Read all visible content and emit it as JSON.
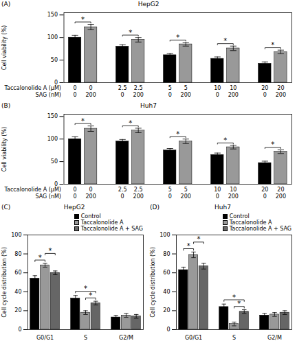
{
  "chart_data": [
    {
      "type": "bar",
      "title": "HepG2",
      "panel_label": "(A)",
      "ylabel": "Cell viability (%)",
      "ylim": [
        0,
        155
      ],
      "yticks": [
        0,
        50,
        100,
        150
      ],
      "tick_labels": "y",
      "series": [
        {
          "color": "#000000",
          "values": [
            100,
            80,
            61,
            53,
            42
          ],
          "errors": [
            5,
            4,
            4,
            4,
            4
          ]
        },
        {
          "color": "#999999",
          "values": [
            123,
            95,
            85,
            76,
            68
          ],
          "errors": [
            6,
            5,
            4,
            5,
            4
          ]
        }
      ],
      "x_label_rows": [
        {
          "label": "Taccalonolide A (μM)",
          "values": [
            "0",
            "0",
            "2.5",
            "2.5",
            "5",
            "5",
            "10",
            "10",
            "20",
            "20"
          ]
        },
        {
          "label": "SAG (nM)",
          "values": [
            "0",
            "200",
            "0",
            "200",
            "0",
            "200",
            "0",
            "200",
            "0",
            "200"
          ]
        }
      ],
      "significance": [
        "*",
        "*",
        "*",
        "*",
        "*"
      ]
    },
    {
      "type": "bar",
      "title": "Huh7",
      "panel_label": "(B)",
      "ylabel": "Cell viability (%)",
      "ylim": [
        0,
        155
      ],
      "yticks": [
        0,
        50,
        100,
        150
      ],
      "tick_labels": "y",
      "series": [
        {
          "color": "#000000",
          "values": [
            100,
            95,
            75,
            65,
            47
          ],
          "errors": [
            5,
            4,
            4,
            4,
            4
          ]
        },
        {
          "color": "#999999",
          "values": [
            123,
            119,
            95,
            82,
            72
          ],
          "errors": [
            6,
            5,
            5,
            4,
            4
          ]
        }
      ],
      "x_label_rows": [
        {
          "label": "Taccalonolide A (μM)",
          "values": [
            "0",
            "0",
            "2.5",
            "2.5",
            "5",
            "5",
            "10",
            "10",
            "20",
            "20"
          ]
        },
        {
          "label": "SAG (nM)",
          "values": [
            "0",
            "200",
            "0",
            "200",
            "0",
            "200",
            "0",
            "200",
            "0",
            "200"
          ]
        }
      ],
      "significance": [
        "*",
        "*",
        "*",
        "*",
        "*"
      ]
    },
    {
      "type": "bar",
      "title": "HepG2",
      "panel_label": "(C)",
      "ylabel": "Cell cycle distribution (%)",
      "categories": [
        "G0/G1",
        "S",
        "G2/M"
      ],
      "ylim": [
        0,
        100
      ],
      "yticks": [
        0,
        20,
        40,
        60,
        80,
        100
      ],
      "legend": "upper right",
      "series": [
        {
          "name": "Control",
          "color": "#000000",
          "values": [
            54,
            33,
            13
          ],
          "errors": [
            3,
            3,
            2
          ]
        },
        {
          "name": "Taccalonolide A",
          "color": "#999999",
          "values": [
            68,
            18,
            15
          ],
          "errors": [
            2,
            2,
            2
          ]
        },
        {
          "name": "Taccalonolide A + SAG",
          "color": "#666666",
          "values": [
            60,
            28,
            14
          ],
          "errors": [
            2,
            2,
            2
          ]
        }
      ],
      "significance": [
        {
          "category": "G0/G1",
          "between": [
            "Control",
            "Taccalonolide A"
          ],
          "text": "*"
        },
        {
          "category": "G0/G1",
          "between": [
            "Taccalonolide A",
            "Taccalonolide A + SAG"
          ],
          "text": "*"
        },
        {
          "category": "S",
          "between": [
            "Control",
            "Taccalonolide A + SAG"
          ],
          "text": "*"
        },
        {
          "category": "S",
          "between": [
            "Taccalonolide A",
            "Taccalonolide A + SAG"
          ],
          "text": "*"
        }
      ]
    },
    {
      "type": "bar",
      "title": "Huh7",
      "panel_label": "(D)",
      "ylabel": "Cell cycle distribution (%)",
      "categories": [
        "G0/G1",
        "S",
        "G2/M"
      ],
      "ylim": [
        0,
        100
      ],
      "yticks": [
        0,
        20,
        40,
        60,
        80,
        100
      ],
      "legend": "upper right",
      "series": [
        {
          "name": "Control",
          "color": "#000000",
          "values": [
            63,
            24,
            15
          ],
          "errors": [
            3,
            3,
            2
          ]
        },
        {
          "name": "Taccalonolide A",
          "color": "#999999",
          "values": [
            79,
            6,
            16
          ],
          "errors": [
            3,
            2,
            2
          ]
        },
        {
          "name": "Taccalonolide A + SAG",
          "color": "#666666",
          "values": [
            67,
            19,
            18
          ],
          "errors": [
            3,
            2,
            2
          ]
        }
      ],
      "significance": [
        {
          "category": "G0/G1",
          "between": [
            "Control",
            "Taccalonolide A"
          ],
          "text": "*"
        },
        {
          "category": "G0/G1",
          "between": [
            "Taccalonolide A",
            "Taccalonolide A + SAG"
          ],
          "text": "*"
        },
        {
          "category": "S",
          "between": [
            "Control",
            "Taccalonolide A + SAG"
          ],
          "text": "*"
        },
        {
          "category": "S",
          "between": [
            "Taccalonolide A",
            "Taccalonolide A + SAG"
          ],
          "text": "*"
        }
      ]
    }
  ]
}
